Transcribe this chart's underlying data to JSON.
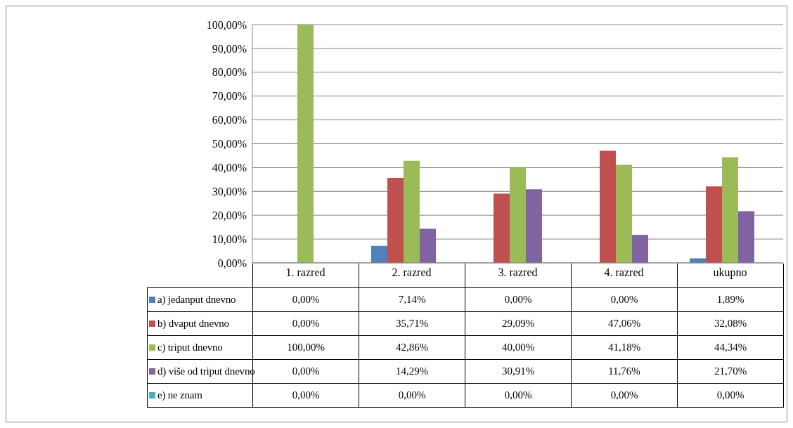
{
  "chart_data": {
    "type": "bar",
    "categories": [
      "1. razred",
      "2. razred",
      "3. razred",
      "4. razred",
      "ukupno"
    ],
    "series": [
      {
        "name": "a) jedanput dnevno",
        "color": "#4f81bd",
        "values": [
          0,
          7.14,
          0,
          0,
          1.89
        ],
        "value_labels": [
          "0,00%",
          "7,14%",
          "0,00%",
          "0,00%",
          "1,89%"
        ]
      },
      {
        "name": "b) dvaput dnevno",
        "color": "#c0504d",
        "values": [
          0,
          35.71,
          29.09,
          47.06,
          32.08
        ],
        "value_labels": [
          "0,00%",
          "35,71%",
          "29,09%",
          "47,06%",
          "32,08%"
        ]
      },
      {
        "name": "c) triput dnevno",
        "color": "#9bbb59",
        "values": [
          100,
          42.86,
          40,
          41.18,
          44.34
        ],
        "value_labels": [
          "100,00%",
          "42,86%",
          "40,00%",
          "41,18%",
          "44,34%"
        ]
      },
      {
        "name": "d) više od triput dnevno",
        "color": "#8064a2",
        "values": [
          0,
          14.29,
          30.91,
          11.76,
          21.7
        ],
        "value_labels": [
          "0,00%",
          "14,29%",
          "30,91%",
          "11,76%",
          "21,70%"
        ]
      },
      {
        "name": "e) ne znam",
        "color": "#4bacc6",
        "values": [
          0,
          0,
          0,
          0,
          0
        ],
        "value_labels": [
          "0,00%",
          "0,00%",
          "0,00%",
          "0,00%",
          "0,00%"
        ]
      }
    ],
    "ylim": [
      0,
      100
    ],
    "yticks": [
      {
        "value": 0,
        "label": "0,00%"
      },
      {
        "value": 10,
        "label": "10,00%"
      },
      {
        "value": 20,
        "label": "20,00%"
      },
      {
        "value": 30,
        "label": "30,00%"
      },
      {
        "value": 40,
        "label": "40,00%"
      },
      {
        "value": 50,
        "label": "50,00%"
      },
      {
        "value": 60,
        "label": "60,00%"
      },
      {
        "value": 70,
        "label": "70,00%"
      },
      {
        "value": 80,
        "label": "80,00%"
      },
      {
        "value": 90,
        "label": "90,00%"
      },
      {
        "value": 100,
        "label": "100,00%"
      }
    ],
    "grid": "y",
    "legend": "bottom left"
  }
}
